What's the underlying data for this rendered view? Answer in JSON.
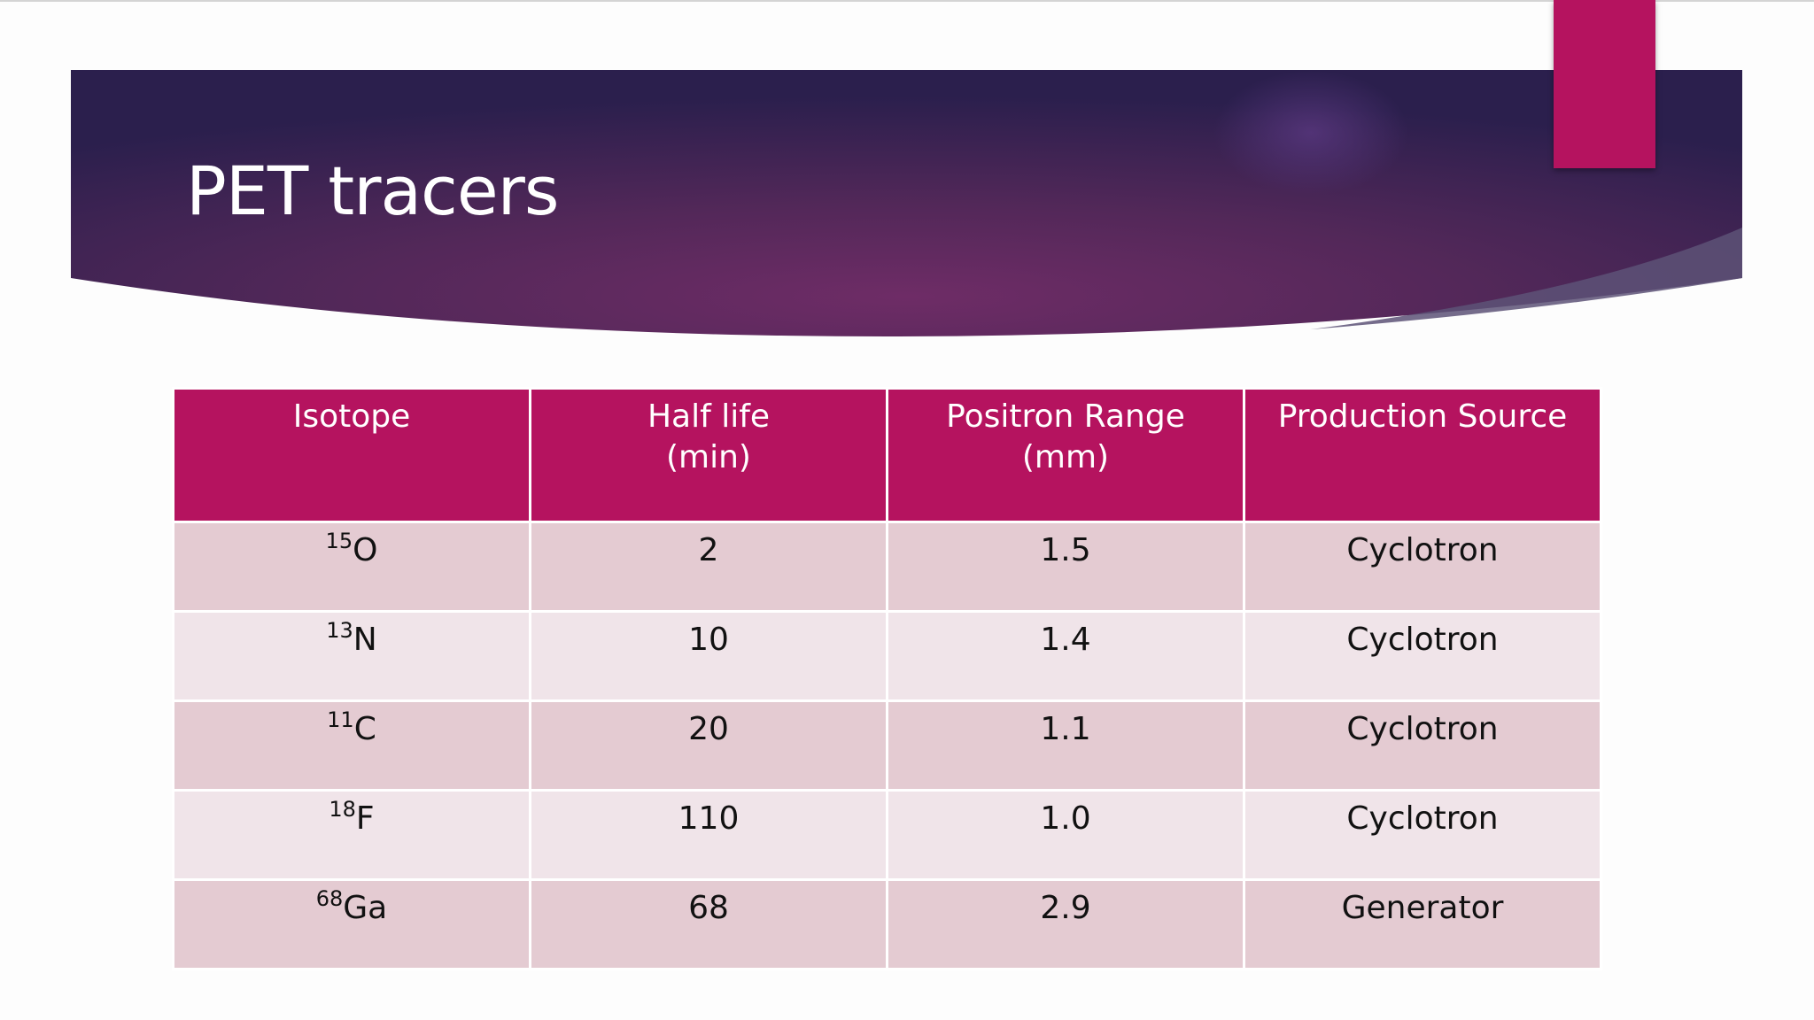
{
  "slide": {
    "title": "PET tracers",
    "colors": {
      "banner_dark": "#2b1f4d",
      "banner_mid": "#6a2a62",
      "accent": "#b5135f",
      "row_odd": "#e4cbd2",
      "row_even": "#f0e4e9"
    }
  },
  "table": {
    "headers": [
      {
        "line1": "Isotope",
        "line2": ""
      },
      {
        "line1": "Half life",
        "line2": "(min)"
      },
      {
        "line1": "Positron Range",
        "line2": "(mm)"
      },
      {
        "line1": "Production Source",
        "line2": ""
      }
    ],
    "rows": [
      {
        "mass": "15",
        "element": "O",
        "half_life": "2",
        "range": "1.5",
        "source": "Cyclotron"
      },
      {
        "mass": "13",
        "element": "N",
        "half_life": "10",
        "range": "1.4",
        "source": "Cyclotron"
      },
      {
        "mass": "11",
        "element": "C",
        "half_life": "20",
        "range": "1.1",
        "source": "Cyclotron"
      },
      {
        "mass": "18",
        "element": "F",
        "half_life": "110",
        "range": "1.0",
        "source": "Cyclotron"
      },
      {
        "mass": "68",
        "element": "Ga",
        "half_life": "68",
        "range": "2.9",
        "source": "Generator"
      }
    ]
  }
}
